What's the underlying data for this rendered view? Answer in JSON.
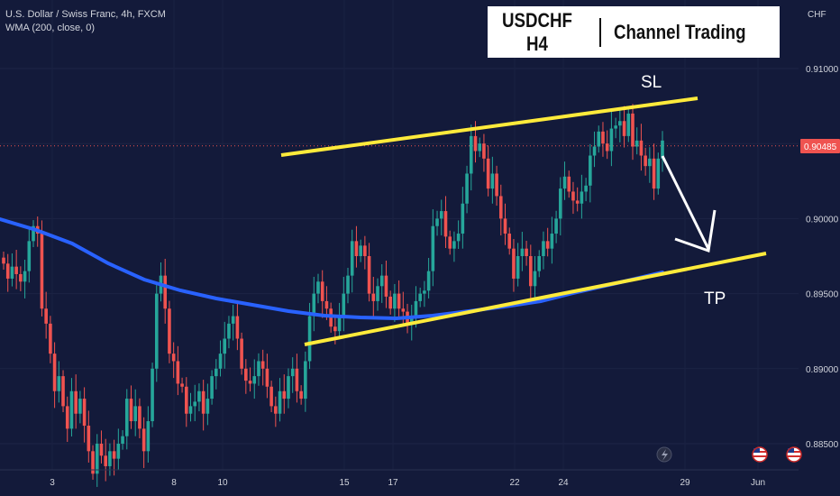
{
  "legend": {
    "symbol": "U.S. Dollar / Swiss Franc, 4h, FXCM",
    "indicator": "WMA (200, close, 0)"
  },
  "title_box": {
    "left": "USDCHF H4",
    "right": "Channel Trading"
  },
  "annotations": {
    "sl": "SL",
    "tp": "TP"
  },
  "colors": {
    "background": "#131a3a",
    "up_candle": "#26a69a",
    "down_candle": "#ef5350",
    "wma": "#2962ff",
    "channel": "#ffeb3b",
    "price_badge": "#ef5350"
  },
  "icons": [
    "lightning-icon",
    "us-flag-icon",
    "us-flag-icon"
  ],
  "chart_data": {
    "type": "candlestick",
    "currency_label": "CHF",
    "ylim": [
      0.8835,
      0.9145
    ],
    "y_ticks": [
      "0.91000",
      "0.90500",
      "0.90000",
      "0.89500",
      "0.89000",
      "0.88500"
    ],
    "x_ticks": [
      {
        "label": "3",
        "day": 3
      },
      {
        "label": "8",
        "day": 8
      },
      {
        "label": "10",
        "day": 10
      },
      {
        "label": "15",
        "day": 15
      },
      {
        "label": "17",
        "day": 17
      },
      {
        "label": "22",
        "day": 22
      },
      {
        "label": "24",
        "day": 24
      },
      {
        "label": "29",
        "day": 29
      },
      {
        "label": "Jun",
        "day": 32
      }
    ],
    "current_price": "0.90485",
    "current_price_value": 0.90485,
    "closes": [
      0.897,
      0.896,
      0.8968,
      0.8963,
      0.8958,
      0.8965,
      0.8985,
      0.8995,
      0.899,
      0.894,
      0.893,
      0.891,
      0.8885,
      0.8895,
      0.8875,
      0.886,
      0.8885,
      0.887,
      0.888,
      0.8862,
      0.8845,
      0.883,
      0.885,
      0.8842,
      0.8835,
      0.8845,
      0.884,
      0.885,
      0.8855,
      0.888,
      0.8865,
      0.8875,
      0.886,
      0.8845,
      0.8865,
      0.89,
      0.895,
      0.8962,
      0.894,
      0.891,
      0.8905,
      0.889,
      0.8888,
      0.887,
      0.8875,
      0.8878,
      0.8885,
      0.887,
      0.888,
      0.8895,
      0.89,
      0.891,
      0.892,
      0.893,
      0.8935,
      0.892,
      0.89,
      0.8892,
      0.889,
      0.8895,
      0.8905,
      0.89,
      0.8888,
      0.8875,
      0.887,
      0.8885,
      0.888,
      0.8895,
      0.89,
      0.8885,
      0.888,
      0.8905,
      0.8935,
      0.895,
      0.8958,
      0.8945,
      0.894,
      0.8928,
      0.8925,
      0.8935,
      0.895,
      0.8962,
      0.8985,
      0.8975,
      0.8982,
      0.8975,
      0.895,
      0.8945,
      0.8955,
      0.8962,
      0.8948,
      0.894,
      0.895,
      0.894,
      0.8938,
      0.893,
      0.8935,
      0.8945,
      0.895,
      0.8952,
      0.8965,
      0.8995,
      0.9,
      0.9005,
      0.8988,
      0.898,
      0.8985,
      0.899,
      0.901,
      0.903,
      0.9055,
      0.9045,
      0.905,
      0.904,
      0.902,
      0.903,
      0.9015,
      0.9,
      0.899,
      0.898,
      0.896,
      0.8975,
      0.898,
      0.8975,
      0.8955,
      0.8965,
      0.8975,
      0.8985,
      0.898,
      0.899,
      0.9,
      0.902,
      0.9028,
      0.9018,
      0.9012,
      0.901,
      0.9018,
      0.9022,
      0.9042,
      0.9048,
      0.9058,
      0.905,
      0.9045,
      0.906,
      0.9062,
      0.9065,
      0.9055,
      0.907,
      0.9048,
      0.9052,
      0.9042,
      0.9035,
      0.904,
      0.902,
      0.904,
      0.9052
    ]
  }
}
